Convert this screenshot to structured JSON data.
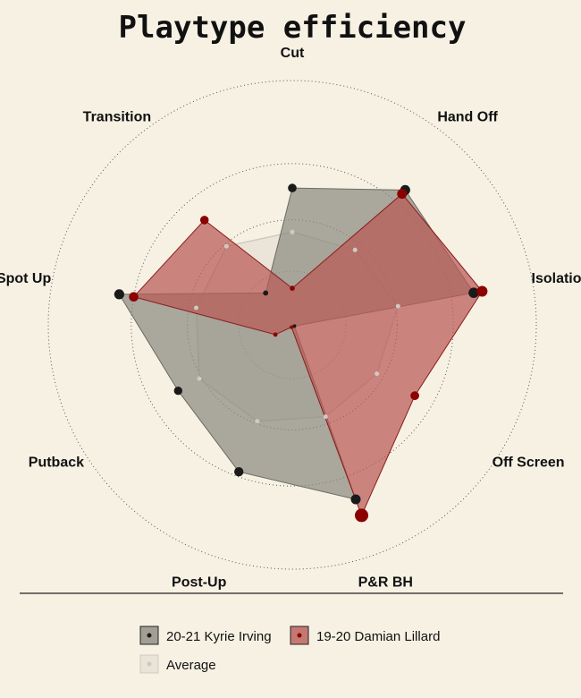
{
  "chart_data": {
    "type": "radar",
    "title": "Playtype efficiency",
    "axes": [
      "Isolation",
      "Off Screen",
      "P&R BH",
      "Post-Up",
      "Putback",
      "Spot Up",
      "Transition",
      "Cut",
      "Hand Off"
    ],
    "rlim": [
      0,
      1
    ],
    "grid": true,
    "legend_position": "bottom",
    "series": [
      {
        "name": "20-21 Kyrie Irving",
        "values": [
          0.755,
          0.01,
          0.76,
          0.64,
          0.54,
          0.72,
          0.17,
          0.56,
          0.72
        ],
        "color": "#6b6b62",
        "fill": "#8c8a80"
      },
      {
        "name": "19-20 Damian Lillard",
        "values": [
          0.79,
          0.58,
          0.83,
          0.01,
          0.08,
          0.66,
          0.56,
          0.15,
          0.7
        ],
        "color": "#8b1a1a",
        "fill": "#b85a55"
      },
      {
        "name": "Average",
        "values": [
          0.44,
          0.4,
          0.4,
          0.42,
          0.44,
          0.4,
          0.42,
          0.38,
          0.4
        ],
        "color": "#cfcac2",
        "fill": "#dcd6cc"
      }
    ]
  }
}
